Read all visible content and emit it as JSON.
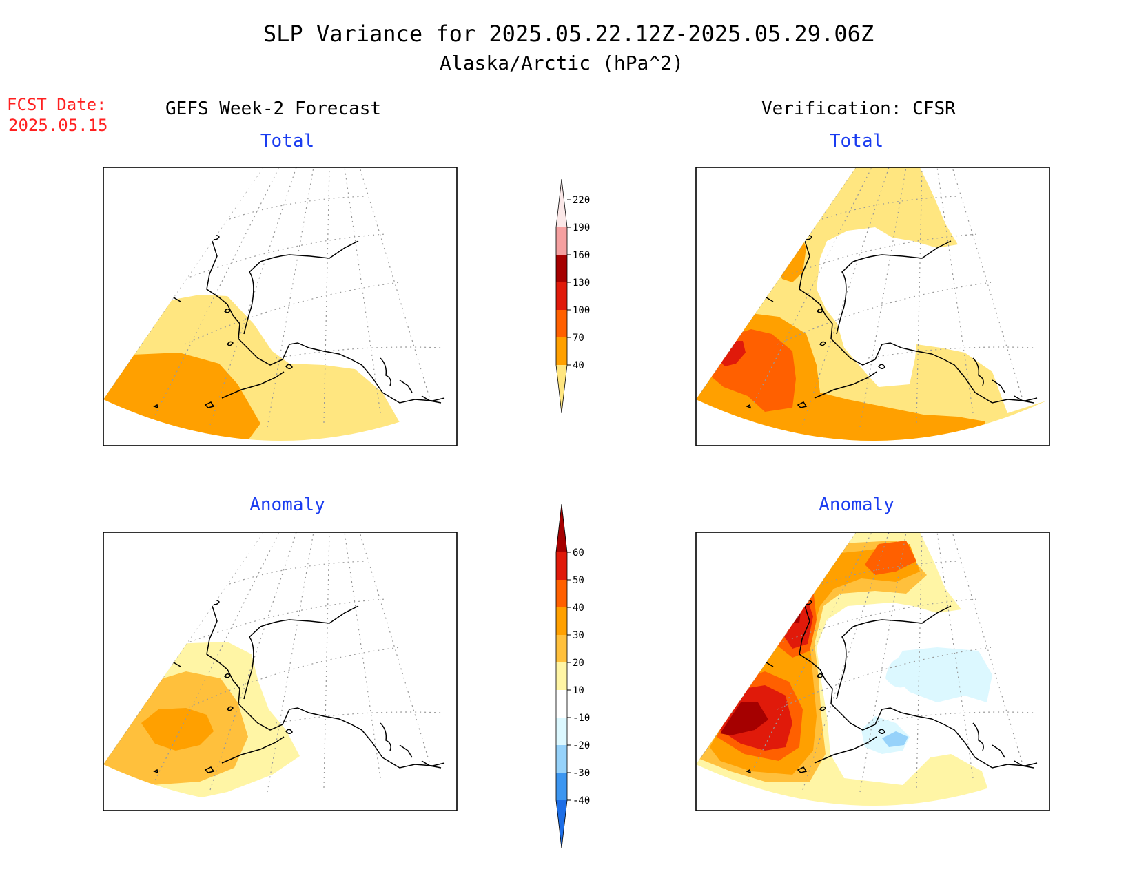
{
  "title": "SLP Variance for 2025.05.22.12Z-2025.05.29.06Z",
  "subtitle": "Alaska/Arctic (hPa^2)",
  "fcst_date": {
    "label": "FCST Date:",
    "value": "2025.05.15"
  },
  "columns": {
    "left": "GEFS Week-2 Forecast",
    "right": "Verification: CFSR"
  },
  "panels": {
    "fcst_total": {
      "label": "Total"
    },
    "fcst_anomaly": {
      "label": "Anomaly"
    },
    "verif_total": {
      "label": "Total"
    },
    "verif_anomaly": {
      "label": "Anomaly"
    }
  },
  "colorbars": {
    "total": {
      "ticks": [
        "40",
        "70",
        "100",
        "130",
        "160",
        "190",
        "220"
      ],
      "colors": [
        "#ffe680",
        "#ffa000",
        "#ff6000",
        "#e01a0a",
        "#a50000",
        "#f5a0a0",
        "#fbe8e8"
      ]
    },
    "anomaly": {
      "ticks": [
        "-40",
        "-30",
        "-20",
        "-10",
        "10",
        "20",
        "30",
        "40",
        "50",
        "60"
      ],
      "colors": [
        "#1e6ee6",
        "#3c96f0",
        "#96d2fa",
        "#dcf8ff",
        "#ffffff",
        "#fff5a5",
        "#ffc03c",
        "#ffa000",
        "#ff6000",
        "#e01a0a",
        "#a50000"
      ]
    }
  },
  "map_colors": {
    "yellow": "#ffe680",
    "orange": "#ffa000",
    "dark_orange": "#ff6000",
    "red": "#e01a0a",
    "dark_red": "#a50000",
    "light_yellow": "#fff5a5",
    "light_orange": "#ffc03c",
    "light_cyan": "#dcf8ff",
    "light_blue": "#96d2fa"
  }
}
